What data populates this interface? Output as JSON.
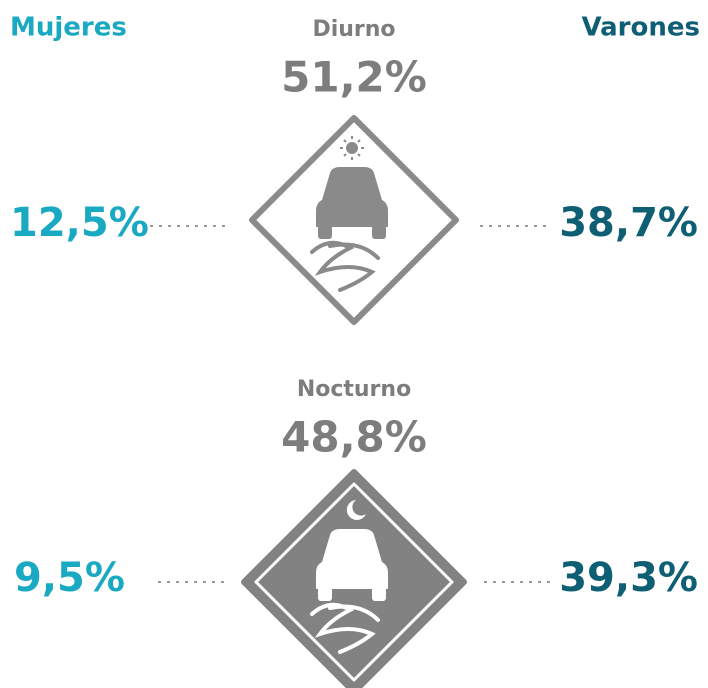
{
  "legend": {
    "left": "Mujeres",
    "right": "Varones"
  },
  "panels": [
    {
      "label": "Diurno",
      "total": "51,2%",
      "mujeres": "12,5%",
      "varones": "38,7%"
    },
    {
      "label": "Nocturno",
      "total": "48,8%",
      "mujeres": "9,5%",
      "varones": "39,3%"
    }
  ]
}
